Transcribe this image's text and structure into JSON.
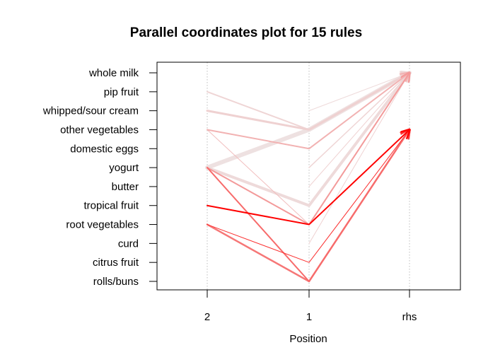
{
  "chart_data": {
    "type": "parallel-coordinates",
    "title": "Parallel coordinates plot for 15 rules",
    "xlabel": "Position",
    "ylabel": "",
    "positions": [
      "2",
      "1",
      "rhs"
    ],
    "items": [
      "rolls/buns",
      "citrus fruit",
      "curd",
      "root vegetables",
      "tropical fruit",
      "butter",
      "yogurt",
      "domestic eggs",
      "other vegetables",
      "whipped/sour cream",
      "pip fruit",
      "whole milk"
    ],
    "grid": true,
    "color_scale": {
      "low": "#ededed",
      "high": "#ff0000"
    },
    "rules": [
      {
        "path": [
          "pip fruit",
          "other vegetables",
          "whole milk"
        ],
        "intensity": 0.1,
        "width": 2
      },
      {
        "path": [
          "whipped/sour cream",
          "other vegetables",
          "whole milk"
        ],
        "intensity": 0.12,
        "width": 3
      },
      {
        "path": [
          "yogurt",
          "other vegetables",
          "whole milk"
        ],
        "intensity": 0.05,
        "width": 6
      },
      {
        "path": [
          "other vegetables",
          "domestic eggs",
          "whole milk"
        ],
        "intensity": 0.25,
        "width": 2
      },
      {
        "path": [
          "",
          "whipped/sour cream",
          "whole milk"
        ],
        "intensity": 0.08,
        "width": 1
      },
      {
        "path": [
          "",
          "butter",
          "whole milk"
        ],
        "intensity": 0.12,
        "width": 1
      },
      {
        "path": [
          "",
          "yogurt",
          "whole milk"
        ],
        "intensity": 0.1,
        "width": 1.5
      },
      {
        "path": [
          "yogurt",
          "tropical fruit",
          "whole milk"
        ],
        "intensity": 0.08,
        "width": 4
      },
      {
        "path": [
          "other vegetables",
          "root vegetables",
          "other vegetables"
        ],
        "intensity": 0.2,
        "width": 1
      },
      {
        "path": [
          "",
          "curd",
          "whole milk"
        ],
        "intensity": 0.12,
        "width": 1
      },
      {
        "path": [
          "yogurt",
          "root vegetables",
          "whole milk"
        ],
        "intensity": 0.35,
        "width": 2
      },
      {
        "path": [
          "root vegetables",
          "citrus fruit",
          "other vegetables"
        ],
        "intensity": 0.8,
        "width": 1
      },
      {
        "path": [
          "root vegetables",
          "rolls/buns",
          "other vegetables"
        ],
        "intensity": 0.5,
        "width": 2.5
      },
      {
        "path": [
          "yogurt",
          "rolls/buns",
          "other vegetables"
        ],
        "intensity": 0.55,
        "width": 2
      },
      {
        "path": [
          "tropical fruit",
          "root vegetables",
          "other vegetables"
        ],
        "intensity": 1.0,
        "width": 2
      }
    ]
  }
}
